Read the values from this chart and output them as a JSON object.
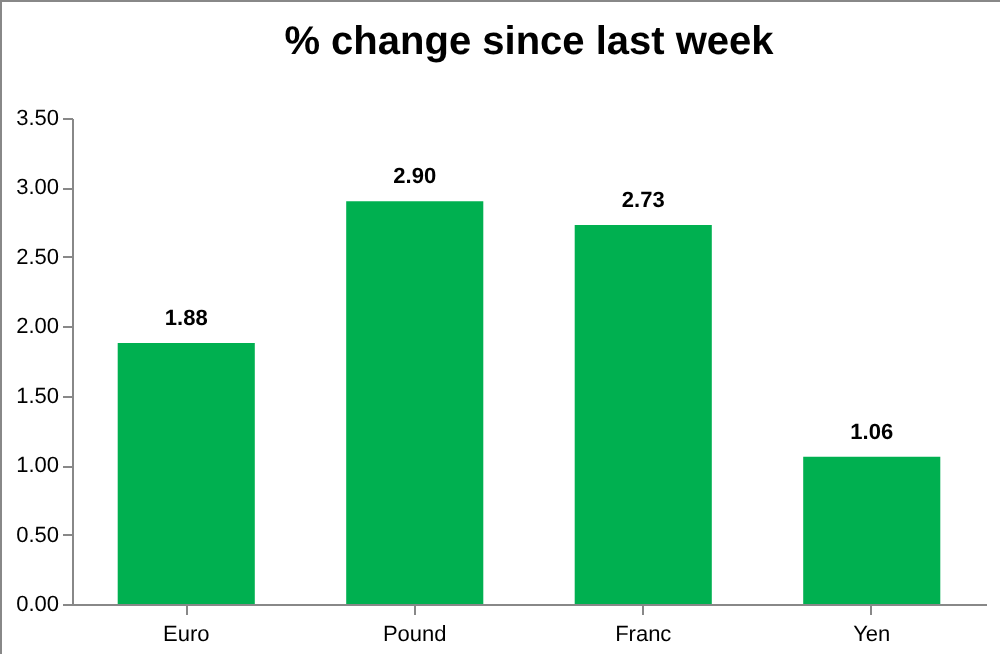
{
  "chart_data": {
    "type": "bar",
    "title": "% change since last week",
    "categories": [
      "Euro",
      "Pound",
      "Franc",
      "Yen"
    ],
    "values": [
      1.88,
      2.9,
      2.73,
      1.06
    ],
    "value_labels": [
      "1.88",
      "2.90",
      "2.73",
      "1.06"
    ],
    "color": "#00b050",
    "ylim": [
      0,
      3.5
    ],
    "yticks": [
      {
        "value": 0,
        "label": "0.00"
      },
      {
        "value": 0.5,
        "label": "0.50"
      },
      {
        "value": 1,
        "label": "1.00"
      },
      {
        "value": 1.5,
        "label": "1.50"
      },
      {
        "value": 2,
        "label": "2.00"
      },
      {
        "value": 2.5,
        "label": "2.50"
      },
      {
        "value": 3,
        "label": "3.00"
      },
      {
        "value": 3.5,
        "label": "3.50"
      }
    ],
    "grid": false
  }
}
